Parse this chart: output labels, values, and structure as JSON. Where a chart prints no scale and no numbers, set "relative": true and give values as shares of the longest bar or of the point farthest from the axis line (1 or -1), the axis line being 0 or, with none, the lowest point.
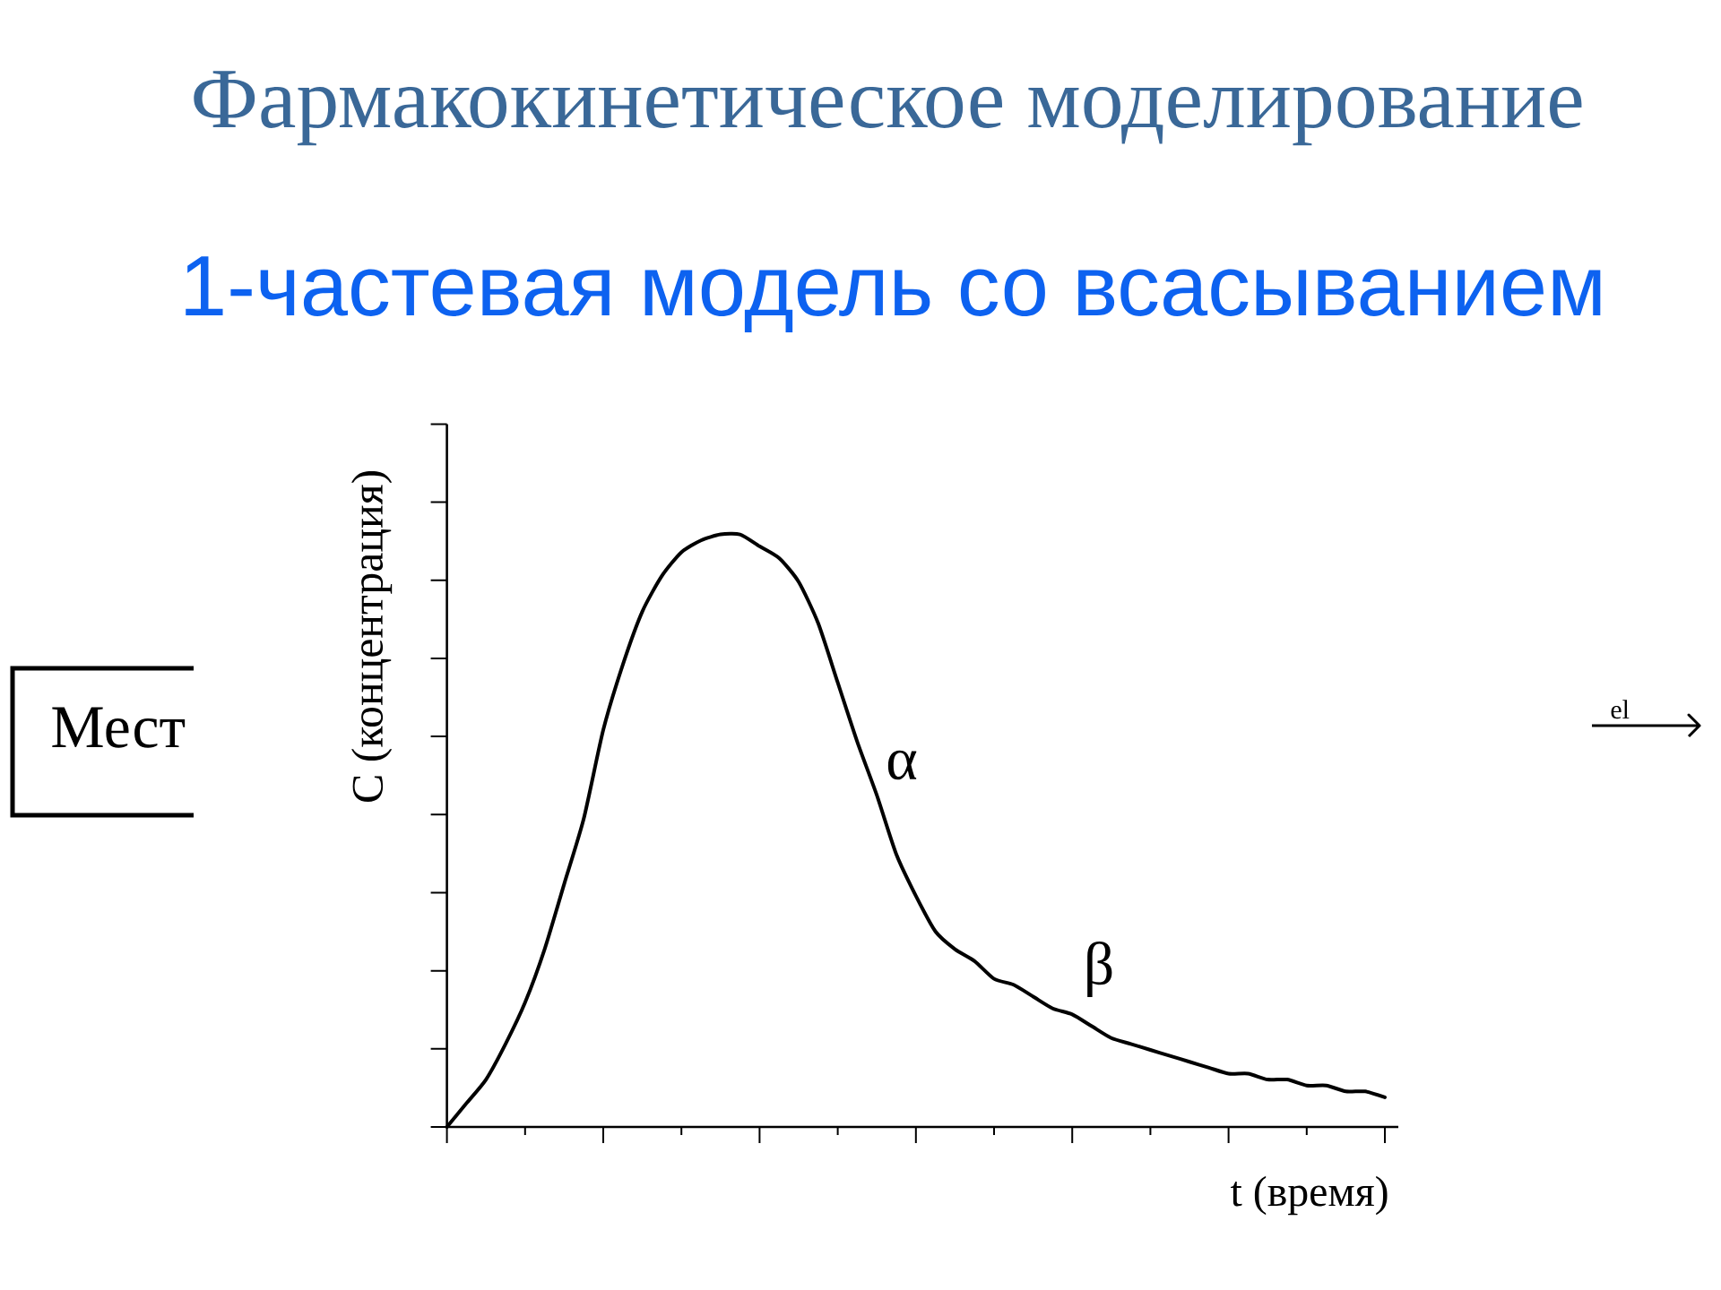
{
  "chart_data": {
    "type": "line",
    "title": "Фармакокинетическое моделирование",
    "subtitle": "1-частевая модель со всасыванием",
    "xlabel": "t (время)",
    "ylabel": "C (концентрация)",
    "categories": [
      null,
      null,
      null,
      null,
      null,
      null,
      null,
      null,
      null,
      null,
      null,
      null,
      null,
      null,
      null,
      null,
      null,
      null,
      null,
      null,
      null,
      null,
      null,
      null,
      null,
      null,
      null,
      null,
      null,
      null,
      null,
      null,
      null,
      null,
      null,
      null,
      null,
      null,
      null,
      null,
      null,
      null,
      null,
      null,
      null,
      null,
      null,
      null,
      null
    ],
    "values": [
      0,
      0.04,
      0.08,
      0.14,
      0.21,
      0.3,
      0.41,
      0.52,
      0.67,
      0.78,
      0.87,
      0.93,
      0.97,
      0.99,
      1.0,
      1.0,
      0.98,
      0.96,
      0.92,
      0.85,
      0.75,
      0.65,
      0.56,
      0.46,
      0.39,
      0.33,
      0.3,
      0.28,
      0.25,
      0.24,
      0.22,
      0.2,
      0.19,
      0.17,
      0.15,
      0.14,
      0.13,
      0.12,
      0.11,
      0.1,
      0.09,
      0.09,
      0.08,
      0.08,
      0.07,
      0.07,
      0.06,
      0.06,
      0.05
    ],
    "color": "#000000",
    "relative": true,
    "annotations": [
      "Мест",
      "el",
      "α",
      "β"
    ]
  }
}
